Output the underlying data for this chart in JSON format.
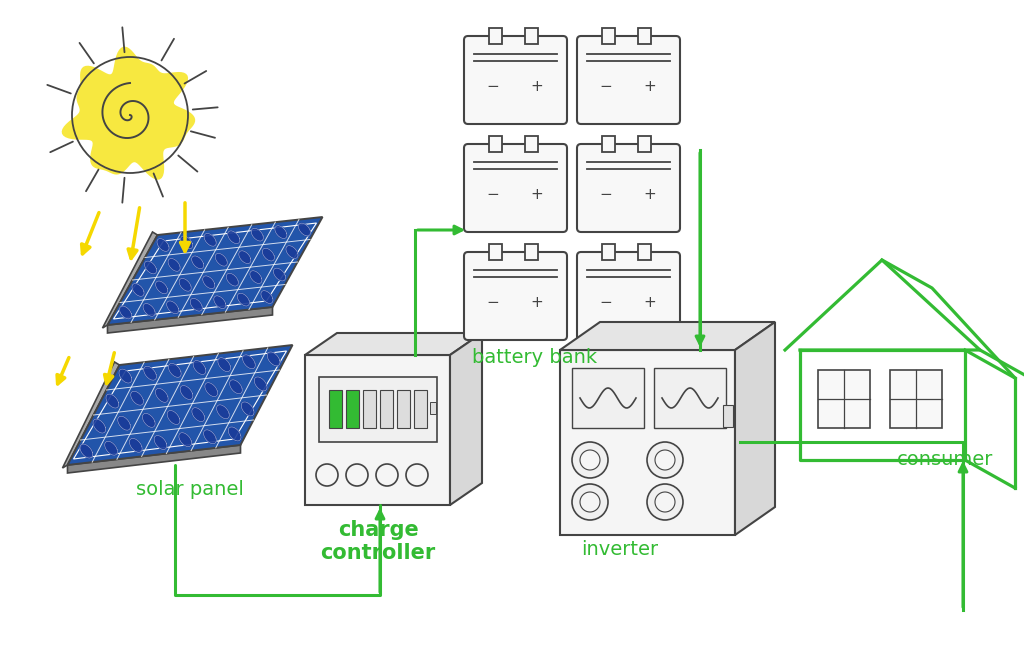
{
  "bg_color": "#ffffff",
  "green_color": "#33bb33",
  "yellow_color": "#f7e840",
  "yellow_arrow": "#f5d800",
  "dark_color": "#444444",
  "blue_panel": "#2255aa",
  "blue_dark": "#112277",
  "gray_light": "#f0f0f0",
  "gray_mid": "#e0e0e0",
  "gray_dark": "#cccccc",
  "labels": {
    "solar_panel": "solar panel",
    "charge_controller": "charge\ncontroller",
    "battery_bank": "battery bank",
    "inverter": "inverter",
    "consumer": "consumer"
  }
}
